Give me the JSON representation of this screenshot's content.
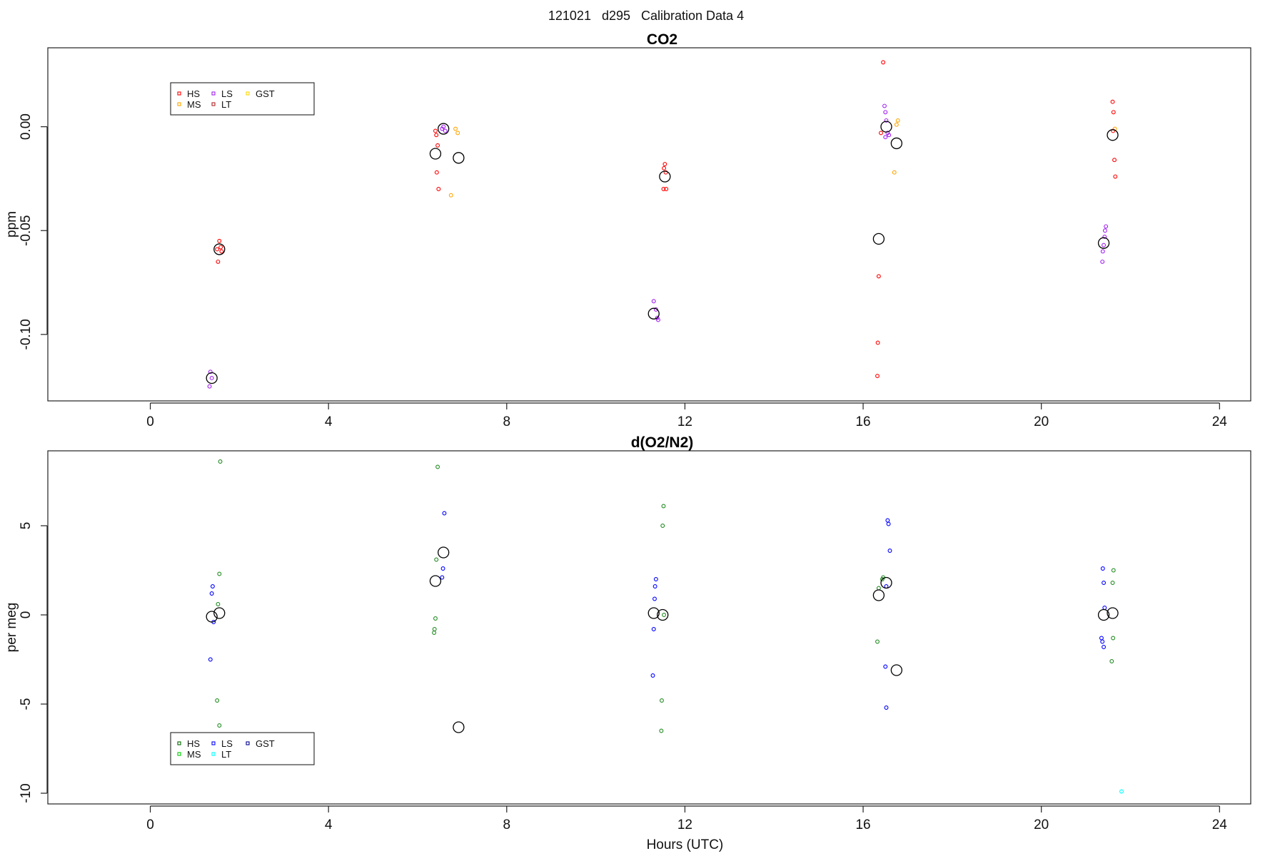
{
  "page_title": "121021   d295   Calibration Data 4",
  "chart_data": [
    {
      "type": "scatter",
      "title": "CO2",
      "xlabel": "",
      "ylabel": "ppm",
      "xlim": [
        -2.3,
        24.7
      ],
      "ylim": [
        -0.132,
        0.038
      ],
      "xticks": [
        0,
        4,
        8,
        12,
        16,
        20,
        24
      ],
      "yticks": [
        -0.1,
        -0.05,
        0.0
      ],
      "ytick_labels": [
        "-0.10",
        "-0.05",
        "0.00"
      ],
      "legend": {
        "placement": "top-left",
        "entries": [
          {
            "name": "HS",
            "color": "#ff0000"
          },
          {
            "name": "MS",
            "color": "#ffa500"
          },
          {
            "name": "LS",
            "color": "#a020f0"
          },
          {
            "name": "LT",
            "color": "#b22222"
          },
          {
            "name": "GST",
            "color": "#ffd700"
          }
        ]
      },
      "series": [
        {
          "name": "HS",
          "color": "#ff0000",
          "points": [
            [
              1.55,
              -0.055
            ],
            [
              1.5,
              -0.059
            ],
            [
              1.6,
              -0.06
            ],
            [
              1.52,
              -0.065
            ],
            [
              1.58,
              -0.058
            ],
            [
              6.4,
              -0.002
            ],
            [
              6.42,
              -0.004
            ],
            [
              6.45,
              -0.009
            ],
            [
              6.43,
              -0.022
            ],
            [
              6.47,
              -0.03
            ],
            [
              11.55,
              -0.018
            ],
            [
              11.53,
              -0.02
            ],
            [
              11.57,
              -0.022
            ],
            [
              11.52,
              -0.03
            ],
            [
              11.58,
              -0.03
            ],
            [
              16.45,
              0.031
            ],
            [
              16.4,
              -0.003
            ],
            [
              16.35,
              -0.072
            ],
            [
              16.33,
              -0.104
            ],
            [
              16.32,
              -0.12
            ],
            [
              21.6,
              0.012
            ],
            [
              21.62,
              0.007
            ],
            [
              21.64,
              -0.016
            ],
            [
              21.66,
              -0.024
            ],
            [
              21.61,
              -0.002
            ]
          ]
        },
        {
          "name": "MS",
          "color": "#ffa500",
          "points": [
            [
              6.85,
              -0.001
            ],
            [
              6.9,
              -0.003
            ],
            [
              6.75,
              -0.033
            ],
            [
              16.75,
              0.001
            ],
            [
              16.78,
              0.003
            ],
            [
              16.7,
              -0.022
            ],
            [
              21.65,
              -0.001
            ]
          ]
        },
        {
          "name": "LS",
          "color": "#a020f0",
          "points": [
            [
              1.35,
              -0.118
            ],
            [
              1.33,
              -0.125
            ],
            [
              1.38,
              -0.121
            ],
            [
              6.55,
              -0.001
            ],
            [
              6.58,
              0.0
            ],
            [
              6.62,
              -0.002
            ],
            [
              11.3,
              -0.084
            ],
            [
              11.35,
              -0.088
            ],
            [
              11.38,
              -0.092
            ],
            [
              11.4,
              -0.093
            ],
            [
              16.48,
              0.01
            ],
            [
              16.5,
              0.007
            ],
            [
              16.52,
              0.003
            ],
            [
              16.55,
              -0.003
            ],
            [
              16.58,
              -0.004
            ],
            [
              16.5,
              -0.005
            ],
            [
              21.45,
              -0.048
            ],
            [
              21.43,
              -0.05
            ],
            [
              21.42,
              -0.053
            ],
            [
              21.4,
              -0.057
            ],
            [
              21.38,
              -0.06
            ],
            [
              21.37,
              -0.065
            ]
          ]
        },
        {
          "name": "Mean",
          "color": "#000000",
          "marker": "large-open-circle",
          "points": [
            [
              1.38,
              -0.121
            ],
            [
              1.55,
              -0.059
            ],
            [
              6.4,
              -0.013
            ],
            [
              6.58,
              -0.001
            ],
            [
              6.92,
              -0.015
            ],
            [
              11.3,
              -0.09
            ],
            [
              11.55,
              -0.024
            ],
            [
              16.35,
              -0.054
            ],
            [
              16.52,
              0.0
            ],
            [
              16.75,
              -0.008
            ],
            [
              21.4,
              -0.056
            ],
            [
              21.6,
              -0.004
            ]
          ]
        }
      ]
    },
    {
      "type": "scatter",
      "title": "d(O2/N2)",
      "xlabel": "Hours (UTC)",
      "ylabel": "per meg",
      "xlim": [
        -2.3,
        24.7
      ],
      "ylim": [
        -10.6,
        9.2
      ],
      "xticks": [
        0,
        4,
        8,
        12,
        16,
        20,
        24
      ],
      "yticks": [
        -10,
        -5,
        0,
        5
      ],
      "ytick_labels": [
        "-10",
        "-5",
        "0",
        "5"
      ],
      "legend": {
        "placement": "bottom-left",
        "entries": [
          {
            "name": "HS",
            "color": "#006400"
          },
          {
            "name": "MS",
            "color": "#00cc00"
          },
          {
            "name": "LS",
            "color": "#0000ff"
          },
          {
            "name": "LT",
            "color": "#00ffff"
          },
          {
            "name": "GST",
            "color": "#00008b"
          }
        ]
      },
      "series": [
        {
          "name": "HS",
          "color": "#228b22",
          "points": [
            [
              1.57,
              8.6
            ],
            [
              1.55,
              2.3
            ],
            [
              1.52,
              0.6
            ],
            [
              1.5,
              -4.8
            ],
            [
              1.55,
              -6.2
            ],
            [
              6.45,
              8.3
            ],
            [
              6.42,
              3.1
            ],
            [
              6.4,
              -0.2
            ],
            [
              6.38,
              -0.8
            ],
            [
              6.37,
              -1.0
            ],
            [
              11.52,
              6.1
            ],
            [
              11.5,
              5.0
            ],
            [
              11.53,
              0.0
            ],
            [
              11.48,
              -4.8
            ],
            [
              11.47,
              -6.5
            ],
            [
              16.45,
              2.1
            ],
            [
              16.43,
              2.0
            ],
            [
              16.35,
              1.5
            ],
            [
              16.32,
              -1.5
            ],
            [
              21.62,
              2.5
            ],
            [
              21.6,
              1.8
            ],
            [
              21.61,
              -1.3
            ],
            [
              21.58,
              -2.6
            ]
          ]
        },
        {
          "name": "LS",
          "color": "#0000ff",
          "points": [
            [
              1.4,
              1.6
            ],
            [
              1.38,
              1.2
            ],
            [
              1.42,
              -0.4
            ],
            [
              1.35,
              -2.5
            ],
            [
              6.6,
              5.7
            ],
            [
              6.57,
              2.6
            ],
            [
              6.55,
              2.1
            ],
            [
              11.35,
              2.0
            ],
            [
              11.33,
              1.6
            ],
            [
              11.32,
              0.9
            ],
            [
              11.3,
              -0.8
            ],
            [
              11.28,
              -3.4
            ],
            [
              16.55,
              5.3
            ],
            [
              16.57,
              5.1
            ],
            [
              16.6,
              3.6
            ],
            [
              16.52,
              1.6
            ],
            [
              16.5,
              -2.9
            ],
            [
              16.52,
              -5.2
            ],
            [
              21.38,
              2.6
            ],
            [
              21.4,
              1.8
            ],
            [
              21.42,
              0.4
            ],
            [
              21.35,
              -1.3
            ],
            [
              21.37,
              -1.5
            ],
            [
              21.4,
              -1.8
            ]
          ]
        },
        {
          "name": "LT",
          "color": "#00ffff",
          "points": [
            [
              21.8,
              -9.9
            ]
          ]
        },
        {
          "name": "Mean",
          "color": "#000000",
          "marker": "large-open-circle",
          "points": [
            [
              1.38,
              -0.1
            ],
            [
              1.55,
              0.1
            ],
            [
              6.4,
              1.9
            ],
            [
              6.58,
              3.5
            ],
            [
              6.92,
              -6.3
            ],
            [
              11.3,
              0.1
            ],
            [
              11.5,
              0.0
            ],
            [
              16.35,
              1.1
            ],
            [
              16.52,
              1.8
            ],
            [
              16.75,
              -3.1
            ],
            [
              21.4,
              0.0
            ],
            [
              21.6,
              0.1
            ]
          ]
        }
      ]
    }
  ]
}
